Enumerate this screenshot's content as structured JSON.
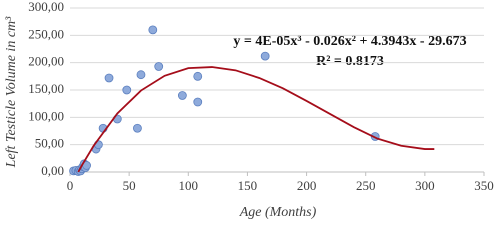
{
  "chart_data": {
    "type": "scatter",
    "x_label": "Age (Months)",
    "y_label": "Left Testicle Volume in cm³",
    "annotations": [
      "y = 4E-05x³ - 0.026x² + 4.3943x - 29.673",
      "R² = 0.8173"
    ],
    "series": [
      {
        "color": "#8eaadb",
        "x": [
          3,
          5,
          7,
          8,
          9,
          10,
          11,
          12,
          13,
          14,
          22,
          24,
          28,
          33,
          40,
          48,
          57,
          60,
          70,
          75,
          95,
          108,
          108,
          165,
          258
        ],
        "values": [
          2,
          3,
          1,
          4,
          2,
          6,
          10,
          15,
          8,
          12,
          42,
          50,
          80,
          172,
          97,
          150,
          80,
          178,
          260,
          193,
          140,
          128,
          175,
          212,
          65
        ]
      }
    ],
    "trendline": {
      "color": "#a50d1a",
      "x": [
        7,
        10,
        20,
        40,
        60,
        80,
        100,
        120,
        140,
        160,
        180,
        200,
        220,
        240,
        260,
        280,
        300,
        308
      ],
      "y": [
        0,
        12,
        48,
        107,
        149,
        176,
        190,
        192,
        186,
        172,
        153,
        130,
        106,
        82,
        61,
        48,
        42,
        42
      ]
    },
    "xlim": [
      0,
      350
    ],
    "xticks": [
      0,
      50,
      100,
      150,
      200,
      250,
      300,
      350
    ],
    "ylim": [
      0,
      300
    ],
    "yticks": [
      {
        "value": 0,
        "label": "0,00"
      },
      {
        "value": 50,
        "label": "50,00"
      },
      {
        "value": 100,
        "label": "100,00"
      },
      {
        "value": 150,
        "label": "150,00"
      },
      {
        "value": 200,
        "label": "200,00"
      },
      {
        "value": 250,
        "label": "250,00"
      },
      {
        "value": 300,
        "label": "300,00"
      }
    ],
    "grid": true
  }
}
